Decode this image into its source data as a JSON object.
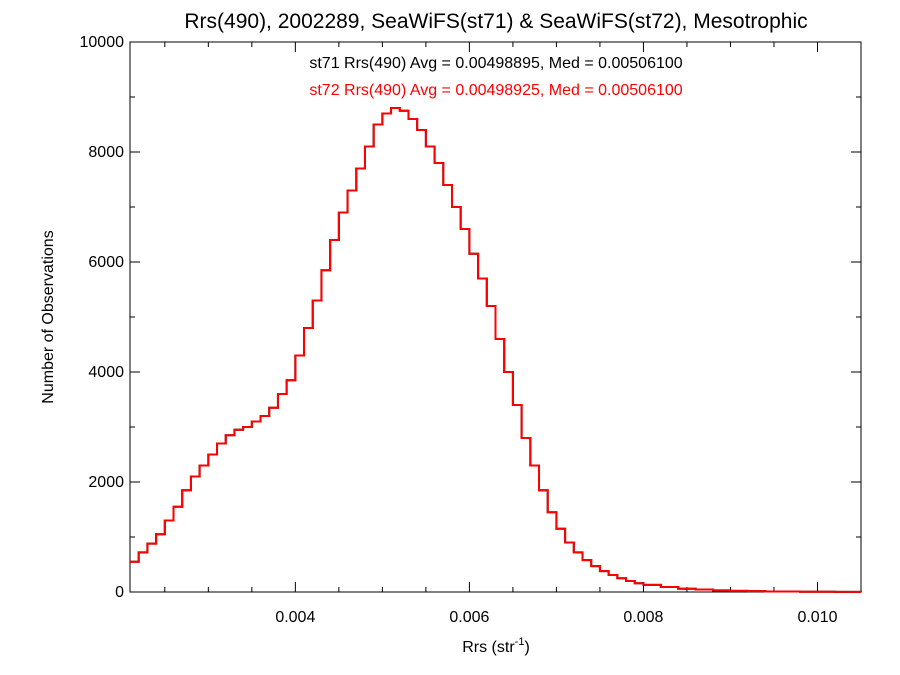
{
  "chart_data": {
    "type": "histogram",
    "title": "Rrs(490), 2002289, SeaWiFS(st71) & SeaWiFS(st72), Mesotrophic",
    "xlabel": "Rrs (str",
    "xlabel_sup": "-1",
    "xlabel_close": ")",
    "ylabel": "Number of Observations",
    "xlim": [
      0.0021,
      0.0105
    ],
    "ylim": [
      0,
      10000
    ],
    "xticks": [
      0.004,
      0.006,
      0.008,
      0.01
    ],
    "xtick_labels": [
      "0.004",
      "0.006",
      "0.008",
      "0.010"
    ],
    "yticks": [
      0,
      2000,
      4000,
      6000,
      8000,
      10000
    ],
    "ytick_labels": [
      "0",
      "2000",
      "4000",
      "6000",
      "8000",
      "10000"
    ],
    "grid": false,
    "series": [
      {
        "name": "st71",
        "color": "#000000",
        "annotation": "st71 Rrs(490) Avg = 0.00498895, Med = 0.00506100",
        "x": [
          0.0021,
          0.0022,
          0.0023,
          0.0024,
          0.0025,
          0.0026,
          0.0027,
          0.0028,
          0.0029,
          0.003,
          0.0031,
          0.0032,
          0.0033,
          0.0034,
          0.0035,
          0.0036,
          0.0037,
          0.0038,
          0.0039,
          0.004,
          0.0041,
          0.0042,
          0.0043,
          0.0044,
          0.0045,
          0.0046,
          0.0047,
          0.0048,
          0.0049,
          0.005,
          0.0051,
          0.0052,
          0.0053,
          0.0054,
          0.0055,
          0.0056,
          0.0057,
          0.0058,
          0.0059,
          0.006,
          0.0061,
          0.0062,
          0.0063,
          0.0064,
          0.0065,
          0.0066,
          0.0067,
          0.0068,
          0.0069,
          0.007,
          0.0071,
          0.0072,
          0.0073,
          0.0074,
          0.0075,
          0.0076,
          0.0077,
          0.0078,
          0.0079,
          0.008,
          0.0082,
          0.0084,
          0.0086,
          0.0088,
          0.009,
          0.0092,
          0.0094,
          0.0096,
          0.0098,
          0.01,
          0.0102,
          0.0105
        ],
        "y": [
          550,
          720,
          880,
          1050,
          1300,
          1550,
          1850,
          2100,
          2300,
          2500,
          2700,
          2850,
          2950,
          3000,
          3100,
          3200,
          3350,
          3600,
          3850,
          4300,
          4800,
          5300,
          5850,
          6400,
          6900,
          7300,
          7700,
          8100,
          8500,
          8700,
          8800,
          8750,
          8600,
          8400,
          8100,
          7800,
          7400,
          7000,
          6600,
          6150,
          5700,
          5200,
          4600,
          4000,
          3400,
          2800,
          2300,
          1850,
          1450,
          1150,
          900,
          720,
          580,
          470,
          380,
          310,
          250,
          200,
          160,
          130,
          90,
          60,
          45,
          30,
          20,
          15,
          10,
          8,
          5,
          4,
          3,
          2
        ]
      },
      {
        "name": "st72",
        "color": "#ff0000",
        "annotation": "st72 Rrs(490) Avg = 0.00498925, Med = 0.00506100",
        "x": [
          0.0021,
          0.0022,
          0.0023,
          0.0024,
          0.0025,
          0.0026,
          0.0027,
          0.0028,
          0.0029,
          0.003,
          0.0031,
          0.0032,
          0.0033,
          0.0034,
          0.0035,
          0.0036,
          0.0037,
          0.0038,
          0.0039,
          0.004,
          0.0041,
          0.0042,
          0.0043,
          0.0044,
          0.0045,
          0.0046,
          0.0047,
          0.0048,
          0.0049,
          0.005,
          0.0051,
          0.0052,
          0.0053,
          0.0054,
          0.0055,
          0.0056,
          0.0057,
          0.0058,
          0.0059,
          0.006,
          0.0061,
          0.0062,
          0.0063,
          0.0064,
          0.0065,
          0.0066,
          0.0067,
          0.0068,
          0.0069,
          0.007,
          0.0071,
          0.0072,
          0.0073,
          0.0074,
          0.0075,
          0.0076,
          0.0077,
          0.0078,
          0.0079,
          0.008,
          0.0082,
          0.0084,
          0.0086,
          0.0088,
          0.009,
          0.0092,
          0.0094,
          0.0096,
          0.0098,
          0.01,
          0.0102,
          0.0105
        ],
        "y": [
          550,
          720,
          880,
          1050,
          1300,
          1550,
          1850,
          2100,
          2300,
          2500,
          2700,
          2850,
          2950,
          3000,
          3100,
          3200,
          3350,
          3600,
          3850,
          4300,
          4800,
          5300,
          5850,
          6400,
          6900,
          7300,
          7700,
          8100,
          8500,
          8700,
          8800,
          8750,
          8600,
          8400,
          8100,
          7800,
          7400,
          7000,
          6600,
          6150,
          5700,
          5200,
          4600,
          4000,
          3400,
          2800,
          2300,
          1850,
          1450,
          1150,
          900,
          720,
          580,
          470,
          380,
          310,
          250,
          200,
          160,
          130,
          90,
          60,
          45,
          30,
          20,
          15,
          10,
          8,
          5,
          4,
          3,
          2
        ]
      }
    ]
  }
}
